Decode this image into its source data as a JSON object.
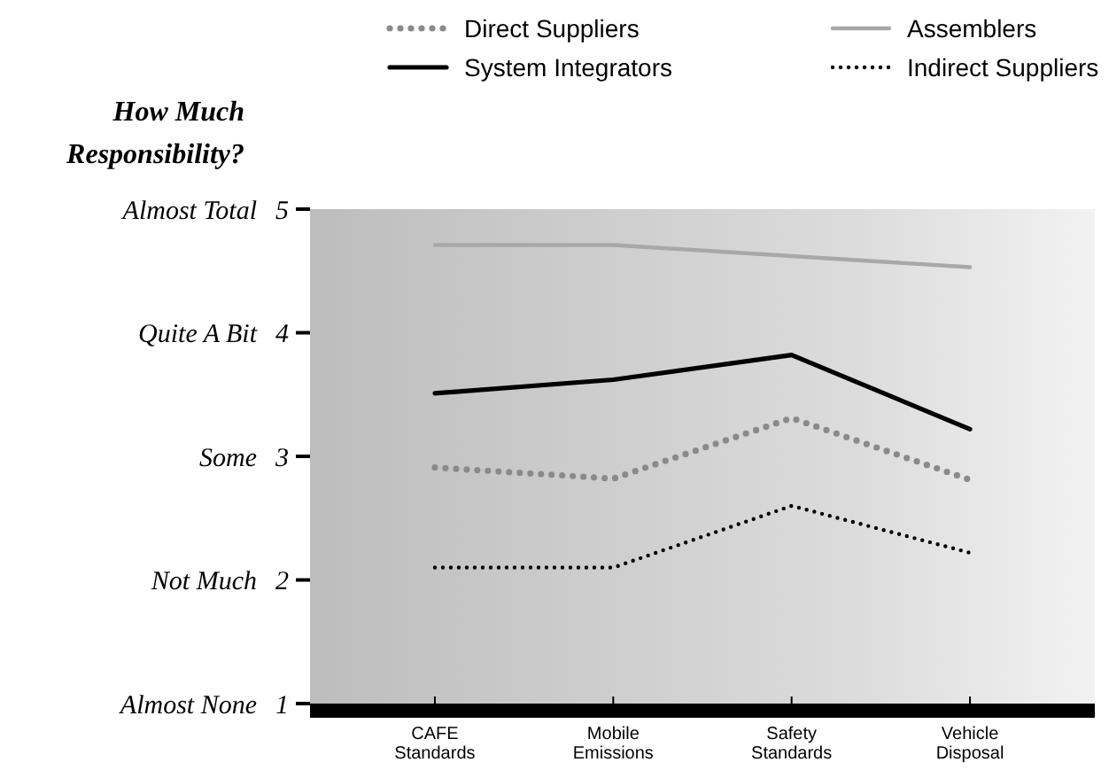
{
  "chart_data": {
    "type": "line",
    "ylabel": "How Much Responsibility?",
    "categories": [
      "CAFE Standards",
      "Mobile Emissions",
      "Safety Standards",
      "Vehicle Disposal"
    ],
    "series": [
      {
        "name": "Direct Suppliers",
        "color": "#8a8a8a",
        "line_style": "dotted",
        "values": [
          2.91,
          2.82,
          3.31,
          2.81
        ]
      },
      {
        "name": "Assemblers",
        "color": "#a8a8a8",
        "line_style": "solid",
        "values": [
          4.71,
          4.71,
          4.62,
          4.53
        ]
      },
      {
        "name": "System Integrators",
        "color": "#000000",
        "line_style": "solid",
        "values": [
          3.51,
          3.62,
          3.82,
          3.22
        ]
      },
      {
        "name": "Indirect Suppliers",
        "color": "#000000",
        "line_style": "dotted",
        "values": [
          2.1,
          2.1,
          2.6,
          2.22
        ]
      }
    ],
    "ylim": [
      1,
      5
    ],
    "yticks": [
      1,
      2,
      3,
      4,
      5
    ],
    "annotations": [
      "Almost None",
      "Not Much",
      "Some",
      "Quite A Bit",
      "Almost Total"
    ],
    "legend": "top",
    "grid": false
  }
}
